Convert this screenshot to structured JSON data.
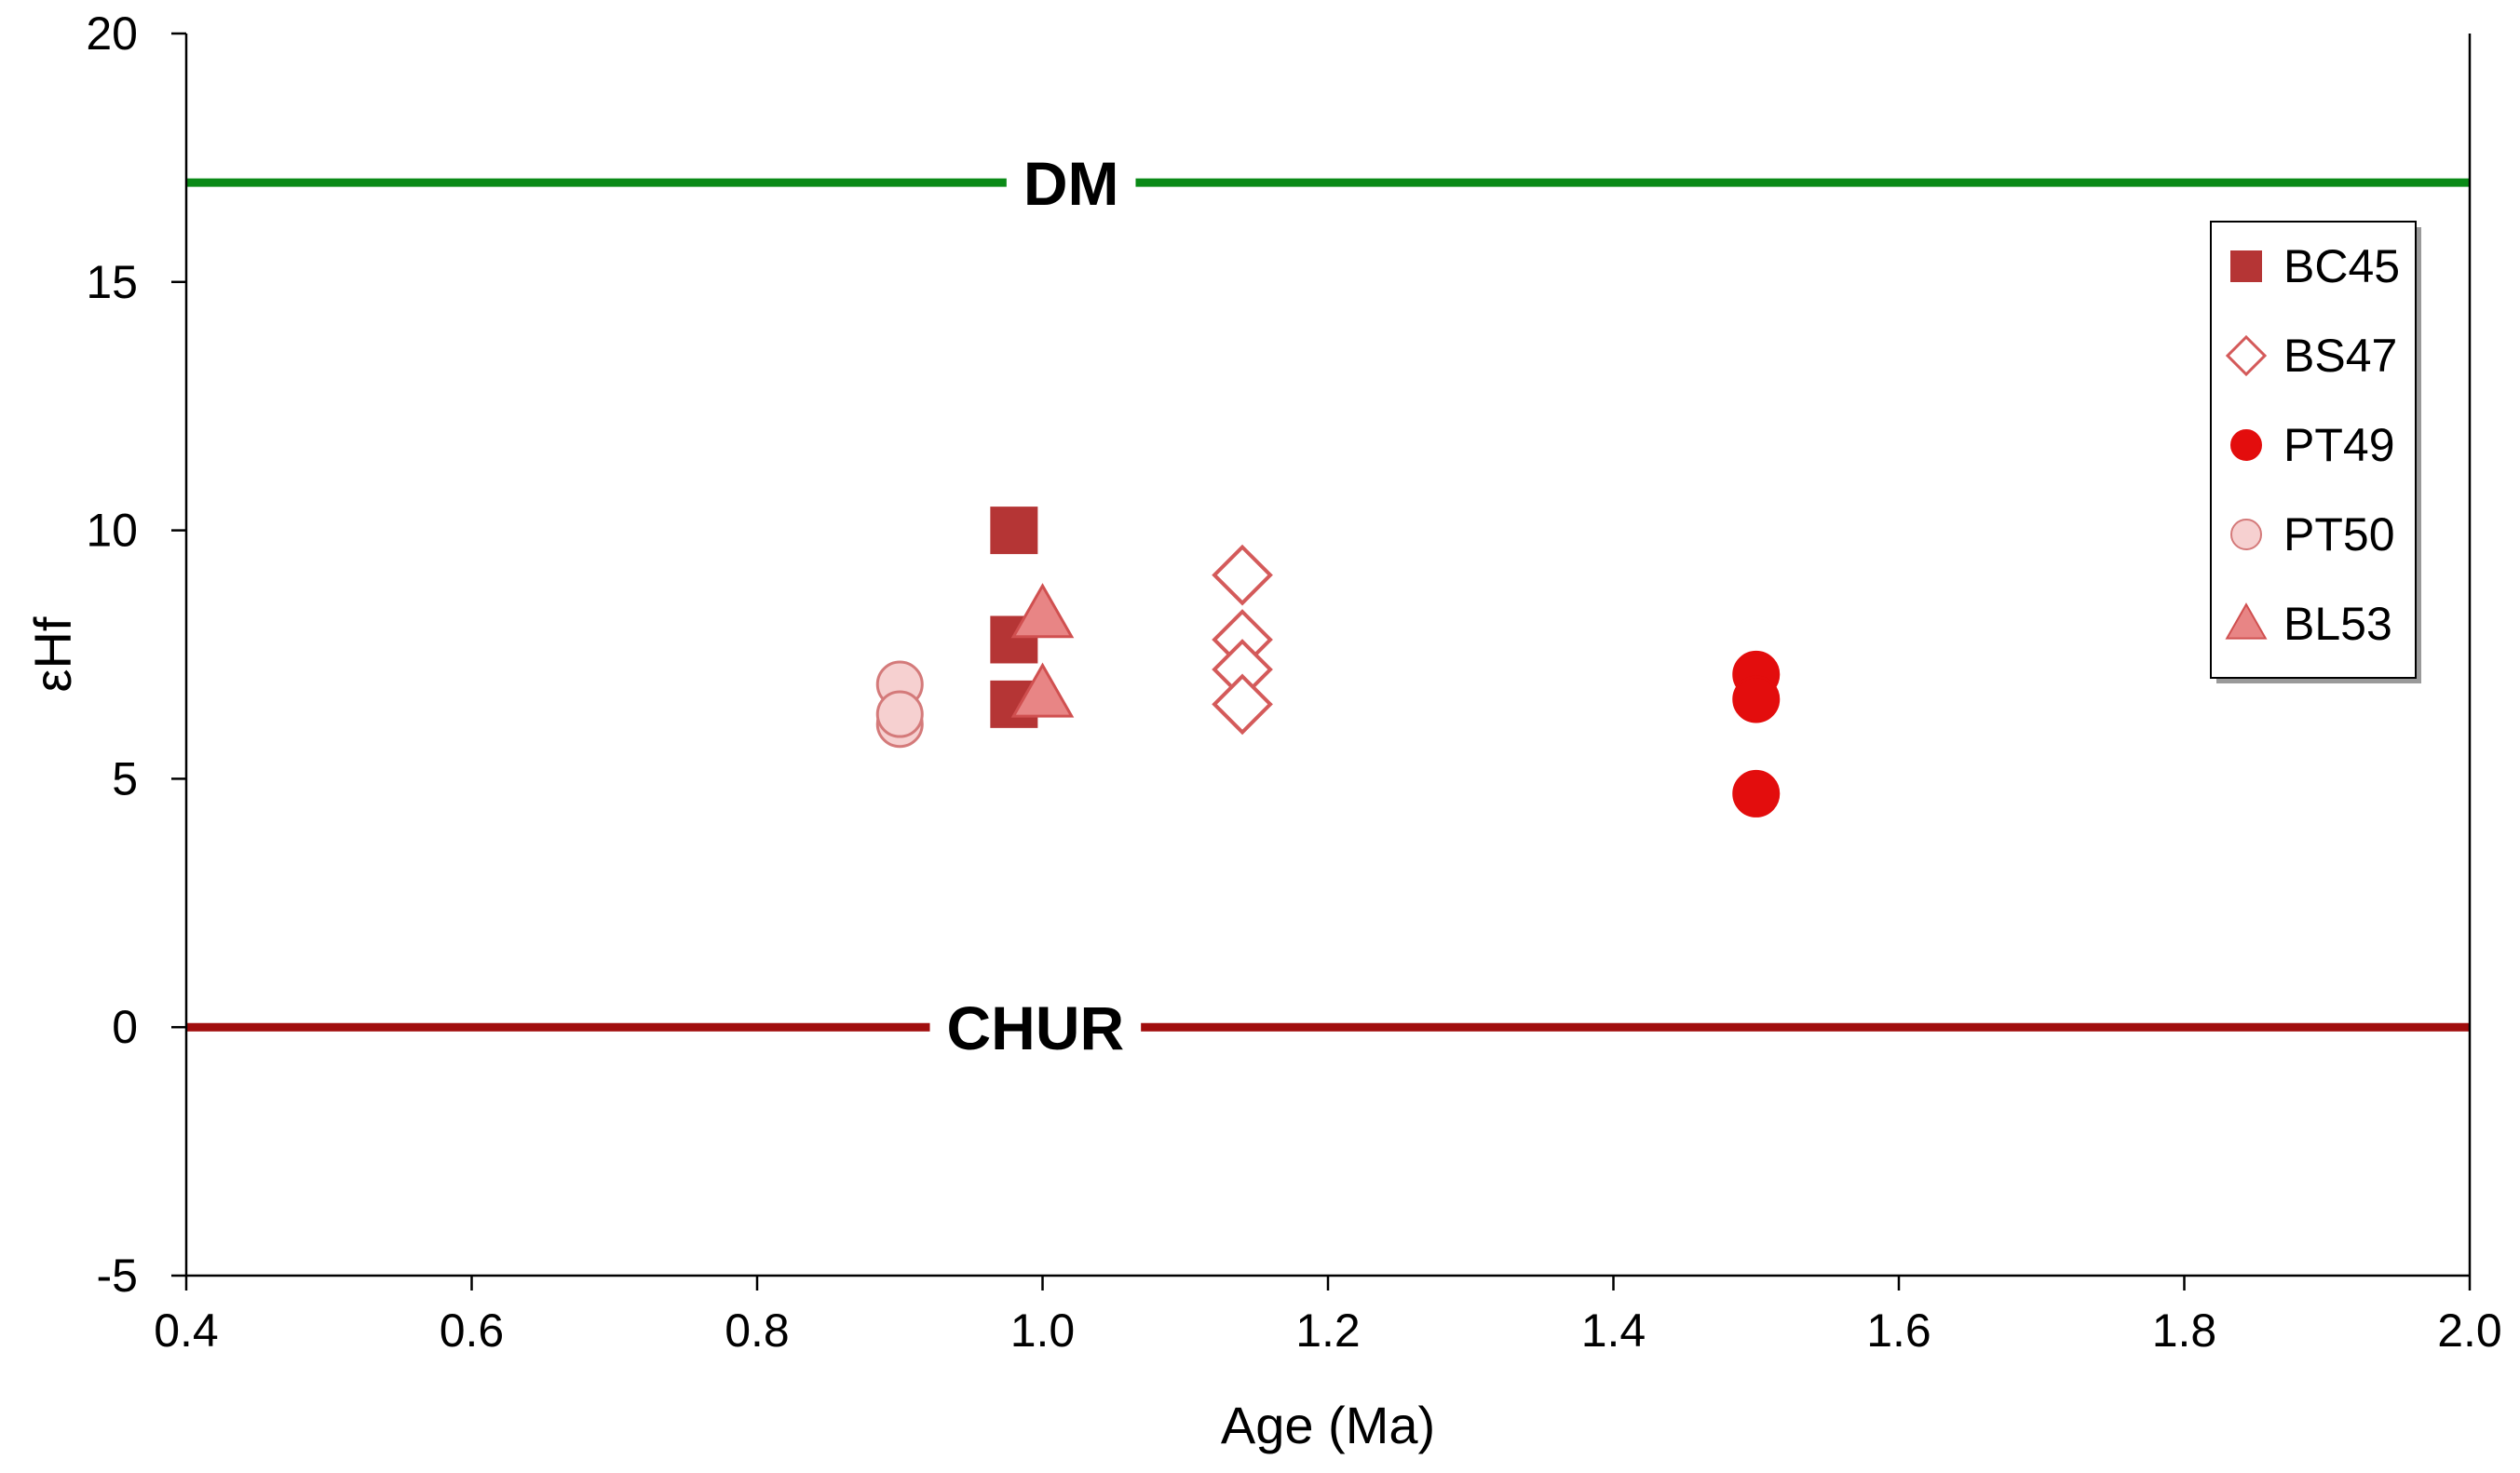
{
  "chart_data": {
    "type": "scatter",
    "title": "",
    "xlabel": "Age (Ma)",
    "ylabel": "εHf",
    "xlim": [
      0.4,
      2.0
    ],
    "ylim": [
      -5,
      20
    ],
    "xticks": [
      0.4,
      0.6,
      0.8,
      1.0,
      1.2,
      1.4,
      1.6,
      1.8,
      2.0
    ],
    "xtick_labels": [
      "0.4",
      "0.6",
      "0.8",
      "1.0",
      "1.2",
      "1.4",
      "1.6",
      "1.8",
      "2.0"
    ],
    "yticks": [
      -5,
      0,
      5,
      10,
      15,
      20
    ],
    "ytick_labels": [
      "-5",
      "0",
      "5",
      "10",
      "15",
      "20"
    ],
    "grid": false,
    "legend_position": "top-right",
    "reference_lines": [
      {
        "label": "DM",
        "y": 17,
        "color": "#0a8a17",
        "label_x": 1.02
      },
      {
        "label": "CHUR",
        "y": 0,
        "color": "#a00d0d",
        "label_x": 0.995
      }
    ],
    "series": [
      {
        "name": "BC45",
        "marker": "square",
        "fill": "#b53535",
        "stroke": "#b53535",
        "x": [
          0.98,
          0.98,
          0.98
        ],
        "y": [
          10.0,
          7.8,
          6.5
        ]
      },
      {
        "name": "BS47",
        "marker": "diamond",
        "fill": "#ffffff",
        "stroke": "#d45a5a",
        "x": [
          1.14,
          1.14,
          1.14,
          1.14
        ],
        "y": [
          9.1,
          7.8,
          7.2,
          6.5
        ]
      },
      {
        "name": "PT49",
        "marker": "circle",
        "fill": "#e30d0d",
        "stroke": "#e30d0d",
        "x": [
          1.5,
          1.5,
          1.5
        ],
        "y": [
          7.1,
          6.6,
          4.7
        ]
      },
      {
        "name": "PT50",
        "marker": "circle",
        "fill": "#f6d0d0",
        "stroke": "#d47a7a",
        "x": [
          0.9,
          0.9,
          0.9
        ],
        "y": [
          6.9,
          6.1,
          6.3
        ]
      },
      {
        "name": "BL53",
        "marker": "triangle",
        "fill": "#e88585",
        "stroke": "#d05050",
        "x": [
          1.0,
          1.0
        ],
        "y": [
          8.3,
          6.7
        ]
      }
    ]
  }
}
